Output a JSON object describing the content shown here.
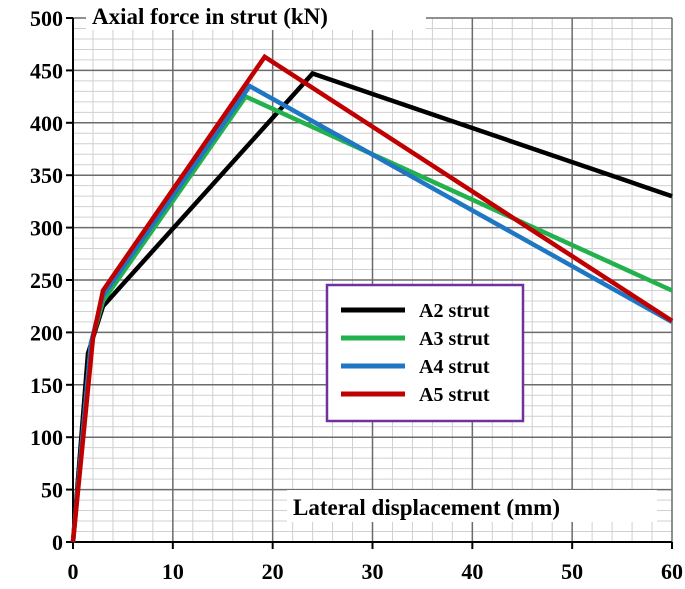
{
  "chart_data": {
    "type": "line",
    "xlabel": "Lateral displacement (mm)",
    "ylabel": "Axial force in strut (kN)",
    "xlim": [
      0,
      60
    ],
    "ylim": [
      0,
      500
    ],
    "x_ticks": [
      0,
      10,
      20,
      30,
      40,
      50,
      60
    ],
    "y_ticks": [
      0,
      50,
      100,
      150,
      200,
      250,
      300,
      350,
      400,
      450,
      500
    ],
    "grid": true,
    "legend_position": "center-right",
    "legend_border_color": "#7030a0",
    "series": [
      {
        "name": "A2 strut",
        "color": "#000000",
        "x": [
          0,
          1.5,
          3,
          24,
          60
        ],
        "y": [
          0,
          180,
          225,
          447,
          330
        ]
      },
      {
        "name": "A3 strut",
        "color": "#22b14c",
        "x": [
          0,
          1.8,
          3,
          17.3,
          60
        ],
        "y": [
          0,
          190,
          230,
          425,
          240
        ]
      },
      {
        "name": "A4 strut",
        "color": "#1f77c4",
        "x": [
          0,
          1.8,
          3,
          17.7,
          60
        ],
        "y": [
          0,
          190,
          235,
          435,
          210
        ]
      },
      {
        "name": "A5 strut",
        "color": "#c00000",
        "x": [
          0,
          2,
          3,
          19.2,
          60
        ],
        "y": [
          0,
          195,
          240,
          463,
          211
        ]
      }
    ]
  }
}
